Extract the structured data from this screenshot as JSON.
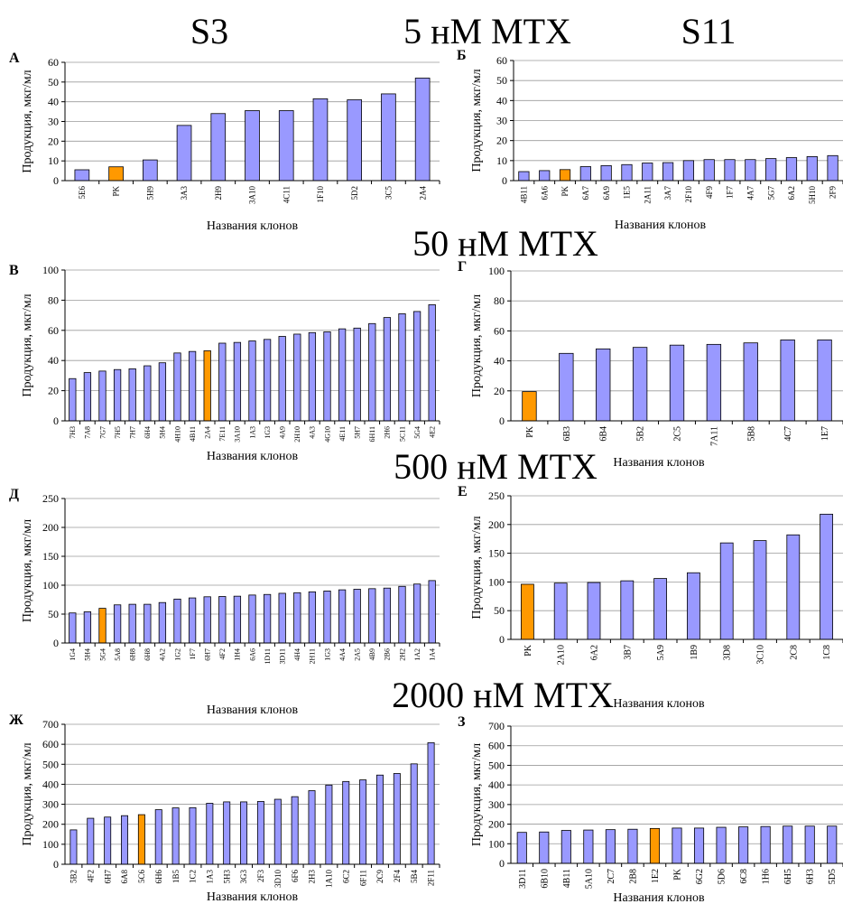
{
  "headings": [
    {
      "text": "S3",
      "x": 232,
      "y": 48,
      "size": 40
    },
    {
      "text": "5 нМ MTX",
      "x": 540,
      "y": 48,
      "size": 40
    },
    {
      "text": "S11",
      "x": 785,
      "y": 48,
      "size": 40
    },
    {
      "text": "50 нМ MTX",
      "x": 560,
      "y": 283,
      "size": 40
    },
    {
      "text": "500 нМ MTX",
      "x": 549,
      "y": 530,
      "size": 40
    },
    {
      "text": "2000 нМ MTX",
      "x": 557,
      "y": 783,
      "size": 40
    }
  ],
  "colors": {
    "bar": "#9999ff",
    "reference_bar": "#ff9900",
    "grid": "#9a9a9a"
  },
  "chart_data": [
    {
      "type": "bar",
      "letter": "А",
      "categories": [
        "5E6",
        "PK",
        "5H9",
        "3A3",
        "2H9",
        "3A10",
        "4C11",
        "1F10",
        "5D2",
        "3C5",
        "2A4"
      ],
      "values": [
        5.5,
        7,
        10.5,
        28,
        34,
        35.5,
        35.5,
        41.5,
        41,
        44,
        52
      ],
      "highlight": [
        "PK"
      ],
      "ylabel": "Продукция, мкг/мл",
      "xlabel": "Названия клонов",
      "ylim": [
        0,
        60
      ],
      "yticks": [
        0,
        10,
        20,
        30,
        40,
        50,
        60
      ],
      "grid": true,
      "legend": "none"
    },
    {
      "type": "bar",
      "letter": "Б",
      "categories": [
        "4B11",
        "6A6",
        "PK",
        "6A7",
        "6A9",
        "1E5",
        "2A11",
        "3A7",
        "2F10",
        "4F9",
        "1F7",
        "4A7",
        "5G7",
        "6A2",
        "5H10",
        "2F9"
      ],
      "values": [
        4.5,
        5,
        5.5,
        7,
        7.5,
        8,
        8.8,
        9,
        10,
        10.5,
        10.5,
        10.5,
        11,
        11.5,
        12,
        12.5
      ],
      "highlight": [
        "PK"
      ],
      "ylabel": "Продукция, мкг/мл",
      "xlabel": "Названия клонов",
      "ylim": [
        0,
        60
      ],
      "yticks": [
        0,
        10,
        20,
        30,
        40,
        50,
        60
      ],
      "grid": true,
      "legend": "none"
    },
    {
      "type": "bar",
      "letter": "В",
      "categories": [
        "7H3",
        "7A8",
        "7G7",
        "7H5",
        "7H7",
        "6H4",
        "5H4",
        "4H10",
        "4B11",
        "2A4",
        "7E11",
        "3A10",
        "1A3",
        "1G3",
        "4A9",
        "2H10",
        "4A3",
        "4G10",
        "4E11",
        "5H7",
        "6H11",
        "2H6",
        "5C11",
        "5G4",
        "4E2"
      ],
      "values": [
        28,
        32,
        33,
        34,
        34.5,
        36.5,
        38.5,
        45,
        46,
        46.5,
        51.5,
        52,
        53,
        54,
        56,
        57.5,
        58.5,
        59,
        61,
        61.5,
        64.5,
        68.5,
        71,
        72.5,
        77
      ],
      "highlight": [
        "2A4"
      ],
      "ylabel": "Продукция, мкг/мл",
      "xlabel": "Названия клонов",
      "ylim": [
        0,
        100
      ],
      "yticks": [
        0,
        20,
        40,
        60,
        80,
        100
      ],
      "grid": true,
      "legend": "none"
    },
    {
      "type": "bar",
      "letter": "Г",
      "categories": [
        "PK",
        "6B3",
        "6B4",
        "5B2",
        "2C5",
        "7A11",
        "5B8",
        "4C7",
        "1E7"
      ],
      "values": [
        19.5,
        45,
        48,
        49,
        50.5,
        51,
        52,
        54,
        54
      ],
      "highlight": [
        "PK"
      ],
      "ylabel": "Продукция, мкг/мл",
      "xlabel": "Названия клонов",
      "ylim": [
        0,
        100
      ],
      "yticks": [
        0,
        20,
        40,
        60,
        80,
        100
      ],
      "grid": true,
      "legend": "none"
    },
    {
      "type": "bar",
      "letter": "Д",
      "categories": [
        "1G4",
        "5H4",
        "5G4",
        "5A8",
        "6H8",
        "6H8",
        "4A2",
        "1G2",
        "1F7",
        "6H7",
        "4F2",
        "1H4",
        "6A6",
        "1D11",
        "3D11",
        "4H4",
        "2H11",
        "1G3",
        "4A4",
        "2A5",
        "4B9",
        "2B6",
        "2H2",
        "1A2",
        "1A4"
      ],
      "values": [
        52,
        54,
        60,
        66,
        67,
        67,
        70,
        76,
        78,
        80,
        80.5,
        81,
        83,
        84,
        86,
        87,
        88.5,
        90,
        92,
        93,
        94,
        95,
        98,
        102,
        108
      ],
      "highlight": [
        "5G4"
      ],
      "ylabel": "Продукция, мкг/мл",
      "xlabel": "Названия клонов",
      "ylim": [
        0,
        250
      ],
      "yticks": [
        0,
        50,
        100,
        150,
        200,
        250
      ],
      "grid": true,
      "legend": "none"
    },
    {
      "type": "bar",
      "letter": "Е",
      "categories": [
        "PK",
        "2A10",
        "6A2",
        "3B7",
        "5A9",
        "1B9",
        "3D8",
        "3C10",
        "2C8",
        "1C8"
      ],
      "values": [
        96,
        98,
        99,
        102,
        106,
        116,
        168,
        172,
        182,
        218
      ],
      "highlight": [
        "PK"
      ],
      "ylabel": "Продукция, мкг/мл",
      "xlabel": "Названия клонов",
      "ylim": [
        0,
        250
      ],
      "yticks": [
        0,
        50,
        100,
        150,
        200,
        250
      ],
      "grid": true,
      "legend": "none"
    },
    {
      "type": "bar",
      "letter": "Ж",
      "categories": [
        "5B2",
        "4F2",
        "6H7",
        "6A8",
        "5C6",
        "6H6",
        "1B5",
        "1C2",
        "1A3",
        "5H3",
        "3G3",
        "2F3",
        "3D10",
        "6F6",
        "2H3",
        "1A10",
        "6C2",
        "6F11",
        "2C9",
        "2F4",
        "5B4",
        "2F11"
      ],
      "values": [
        172,
        230,
        236,
        243,
        248,
        273,
        282,
        283,
        305,
        312,
        312,
        314,
        325,
        338,
        368,
        396,
        414,
        422,
        446,
        454,
        502,
        608
      ],
      "highlight": [
        "5C6"
      ],
      "ylabel": "Продукция, мкг/мл",
      "xlabel": "Названия клонов",
      "ylim": [
        0,
        700
      ],
      "yticks": [
        0,
        100,
        200,
        300,
        400,
        500,
        600,
        700
      ],
      "grid": true,
      "legend": "none"
    },
    {
      "type": "bar",
      "letter": "З",
      "categories": [
        "3D11",
        "6B10",
        "4B11",
        "5A10",
        "2C7",
        "2B8",
        "1E2",
        "PK",
        "6G2",
        "5D6",
        "6C8",
        "1H6",
        "6H5",
        "6H3",
        "5D5"
      ],
      "values": [
        158,
        160,
        168,
        170,
        172,
        174,
        178,
        180,
        180,
        184,
        186,
        188,
        190,
        190,
        190
      ],
      "highlight": [
        "1E2"
      ],
      "ylabel": "Продукция, мкг/мл",
      "xlabel": "Названия клонов",
      "ylim": [
        0,
        700
      ],
      "yticks": [
        0,
        100,
        200,
        300,
        400,
        500,
        600,
        700
      ],
      "grid": true,
      "legend": "none"
    }
  ]
}
